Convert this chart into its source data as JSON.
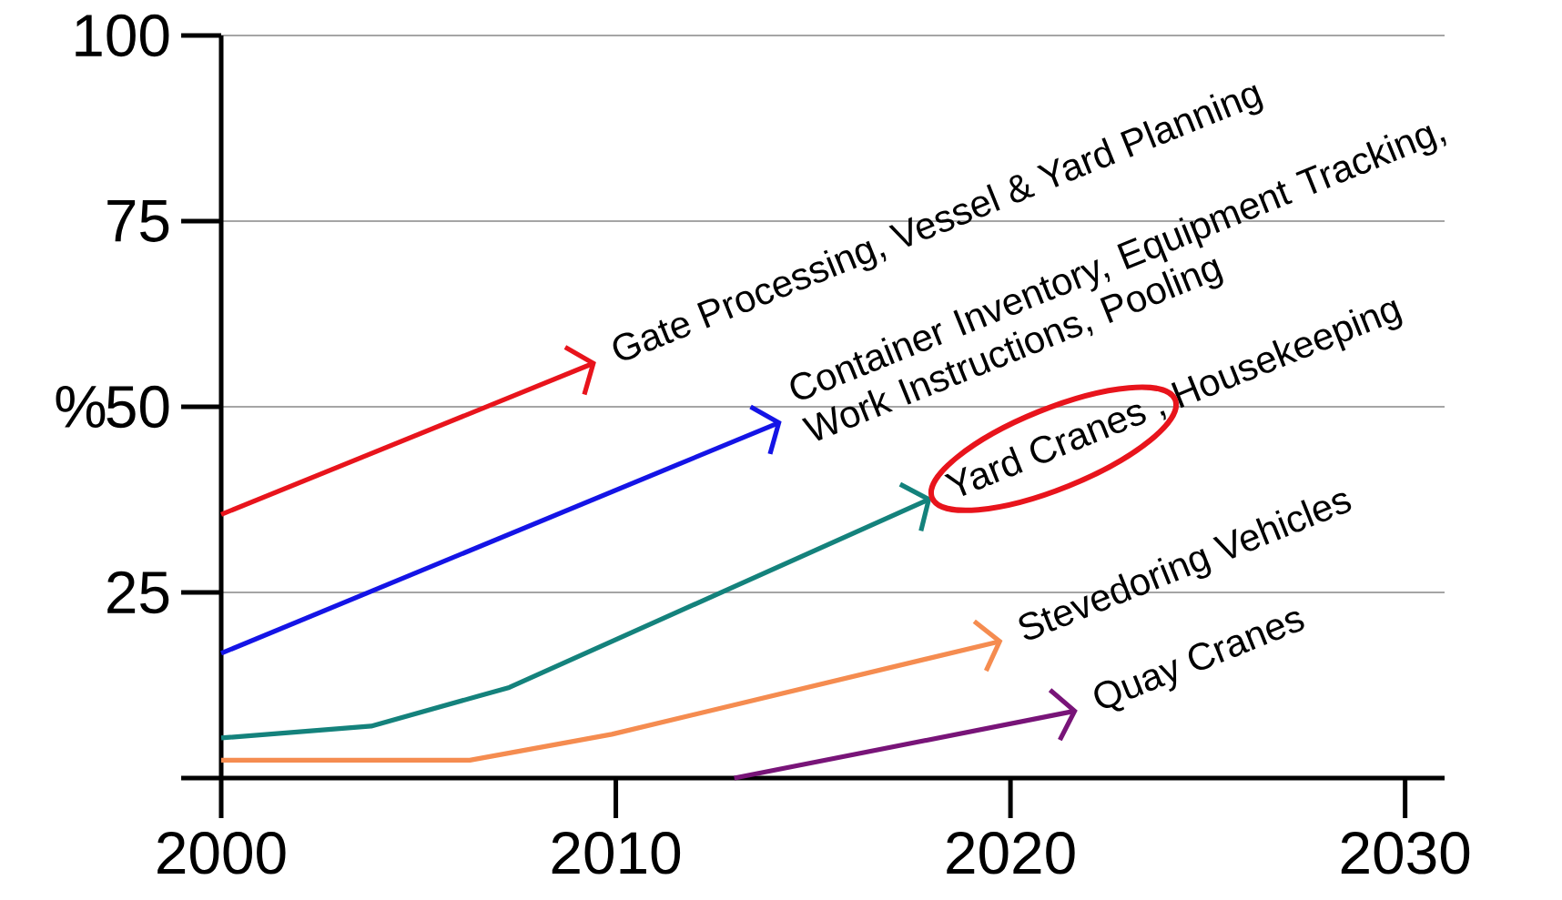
{
  "chart_data": {
    "type": "line",
    "ylabel": "%",
    "xlim": [
      2000,
      2031
    ],
    "ylim": [
      0,
      100
    ],
    "xticks": [
      2000,
      2010,
      2020,
      2030
    ],
    "yticks": [
      {
        "value": 0,
        "label": null
      },
      25,
      50,
      75,
      100
    ],
    "grid": "y",
    "series": [
      {
        "name": "Gate Processing, Vessel & Yard Planning",
        "color": "#e8141c",
        "x": [
          2000,
          2009.5
        ],
        "values": [
          35.5,
          56
        ]
      },
      {
        "name": "Container Inventory, Equipment Tracking, Work Instructions, Pooling",
        "color": "#1414e6",
        "x": [
          2000,
          2014.2
        ],
        "values": [
          16.8,
          48
        ]
      },
      {
        "name": "Yard Cranes , Housekeeping",
        "color": "#14827c",
        "x": [
          2000,
          2003.8,
          2007.3,
          2018
        ],
        "values": [
          5.4,
          7,
          12.2,
          37.7
        ]
      },
      {
        "name": "Stevedoring Vehicles",
        "color": "#f58c50",
        "x": [
          2000,
          2006.3,
          2009.9,
          2019.8
        ],
        "values": [
          2.4,
          2.4,
          5.9,
          18.5
        ]
      },
      {
        "name": "Quay Cranes",
        "color": "#781478",
        "x": [
          2013,
          2021.7
        ],
        "values": [
          0,
          9.1
        ]
      }
    ]
  }
}
